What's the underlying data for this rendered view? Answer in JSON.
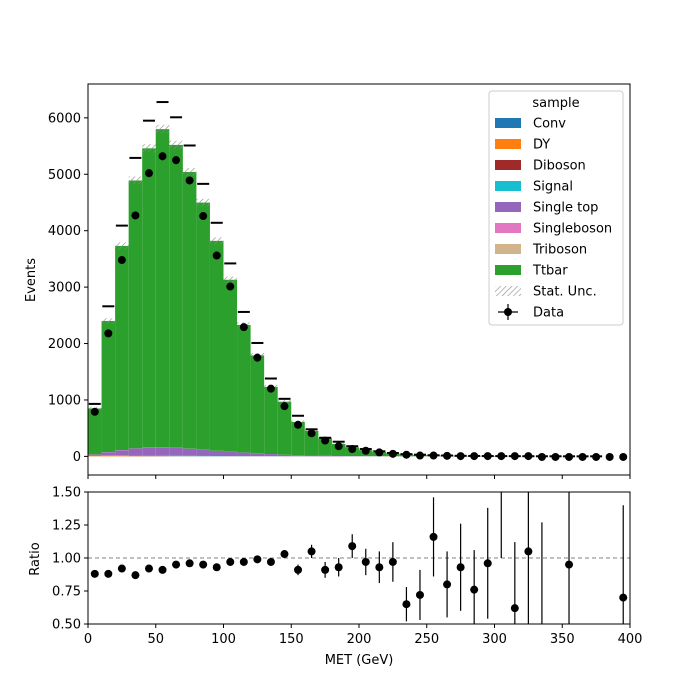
{
  "chart_data": [
    {
      "type": "bar",
      "panel": "main",
      "stacked": true,
      "ylabel": "Events",
      "xlim": [
        0,
        400
      ],
      "ylim": [
        -330,
        6600
      ],
      "bin_width": 10,
      "x_bin_centers": [
        5,
        15,
        25,
        35,
        45,
        55,
        65,
        75,
        85,
        95,
        105,
        115,
        125,
        135,
        145,
        155,
        165,
        175,
        185,
        195,
        205,
        215,
        225,
        235,
        245,
        255,
        265,
        275,
        285,
        295,
        305,
        315,
        325,
        335,
        345,
        355,
        365,
        375,
        385,
        395
      ],
      "yticks": [
        0,
        1000,
        2000,
        3000,
        4000,
        5000,
        6000
      ],
      "legend": {
        "title": "sample",
        "position": "top-right",
        "entries": [
          "Conv",
          "DY",
          "Diboson",
          "Signal",
          "Single top",
          "Singleboson",
          "Triboson",
          "Ttbar",
          "Stat. Unc.",
          "Data"
        ]
      },
      "series": [
        {
          "name": "Conv",
          "color": "#1f77b4",
          "values": [
            0,
            0,
            0,
            0,
            0,
            0,
            0,
            0,
            0,
            0,
            0,
            0,
            0,
            0,
            0,
            0,
            0,
            0,
            0,
            0,
            0,
            0,
            0,
            0,
            0,
            0,
            0,
            0,
            0,
            0,
            0,
            0,
            0,
            0,
            0,
            0,
            0,
            0,
            0,
            0
          ]
        },
        {
          "name": "DY",
          "color": "#ff7f0e",
          "values": [
            5,
            10,
            6,
            3,
            2,
            1,
            1,
            1,
            0,
            0,
            0,
            0,
            0,
            0,
            0,
            0,
            0,
            0,
            0,
            0,
            0,
            0,
            0,
            0,
            0,
            0,
            0,
            0,
            0,
            0,
            0,
            0,
            0,
            0,
            0,
            0,
            0,
            0,
            0,
            0
          ]
        },
        {
          "name": "Diboson",
          "color": "#a02a2a",
          "values": [
            2,
            3,
            4,
            4,
            4,
            4,
            3,
            3,
            3,
            2,
            2,
            2,
            1,
            1,
            1,
            1,
            0,
            0,
            0,
            0,
            0,
            0,
            0,
            0,
            0,
            0,
            0,
            0,
            0,
            0,
            0,
            0,
            0,
            0,
            0,
            0,
            0,
            0,
            0,
            0
          ]
        },
        {
          "name": "Signal",
          "color": "#17becf",
          "values": [
            3,
            5,
            8,
            8,
            8,
            8,
            7,
            6,
            5,
            4,
            3,
            3,
            2,
            2,
            1,
            1,
            1,
            0,
            0,
            0,
            0,
            0,
            0,
            0,
            0,
            0,
            0,
            0,
            0,
            0,
            0,
            0,
            0,
            0,
            0,
            0,
            0,
            0,
            0,
            0
          ]
        },
        {
          "name": "Single top",
          "color": "#9467bd",
          "values": [
            25,
            55,
            90,
            125,
            145,
            150,
            140,
            125,
            108,
            92,
            76,
            62,
            50,
            38,
            28,
            20,
            14,
            10,
            7,
            5,
            4,
            3,
            2,
            1,
            1,
            1,
            0,
            0,
            0,
            0,
            0,
            0,
            0,
            0,
            0,
            0,
            0,
            0,
            0,
            0
          ]
        },
        {
          "name": "Singleboson",
          "color": "#e377c2",
          "values": [
            1,
            2,
            3,
            3,
            3,
            3,
            2,
            2,
            2,
            1,
            1,
            1,
            1,
            0,
            0,
            0,
            0,
            0,
            0,
            0,
            0,
            0,
            0,
            0,
            0,
            0,
            0,
            0,
            0,
            0,
            0,
            0,
            0,
            0,
            0,
            0,
            0,
            0,
            0,
            0
          ]
        },
        {
          "name": "Triboson",
          "color": "#d2b48c",
          "values": [
            0,
            0,
            0,
            0,
            0,
            0,
            0,
            0,
            0,
            0,
            0,
            0,
            0,
            0,
            0,
            0,
            0,
            0,
            0,
            0,
            0,
            0,
            0,
            0,
            0,
            0,
            0,
            0,
            0,
            0,
            0,
            0,
            0,
            0,
            0,
            0,
            0,
            0,
            0,
            0
          ]
        },
        {
          "name": "Ttbar",
          "color": "#2ca02c",
          "values": [
            814,
            2325,
            3619,
            4747,
            5298,
            5634,
            5367,
            4903,
            4380,
            3721,
            3048,
            2262,
            1736,
            1189,
            939,
            588,
            435,
            310,
            213,
            155,
            106,
            72,
            48,
            34,
            24,
            19,
            14,
            10,
            7,
            5,
            4,
            3,
            2,
            1,
            1,
            1,
            1,
            0,
            0,
            0
          ]
        }
      ],
      "stat_unc_color": "#888888",
      "ghost_marker_values": [
        930,
        2660,
        4090,
        5290,
        5950,
        6280,
        6010,
        5510,
        4830,
        4140,
        3420,
        2560,
        2010,
        1380,
        1020,
        720,
        480,
        330,
        260,
        180,
        130,
        90,
        60,
        40,
        30,
        20,
        15,
        10,
        8,
        6,
        5,
        4,
        3,
        2,
        2,
        1,
        1,
        1,
        0,
        0
      ],
      "data": {
        "name": "Data",
        "values": [
          790,
          2180,
          3480,
          4270,
          5020,
          5320,
          5250,
          4890,
          4260,
          3560,
          3010,
          2290,
          1750,
          1200,
          890,
          560,
          410,
          280,
          180,
          130,
          100,
          70,
          45,
          30,
          15,
          15,
          10,
          5,
          5,
          5,
          5,
          5,
          5,
          -10,
          -10,
          -10,
          -10,
          -10,
          -10,
          -10
        ]
      }
    },
    {
      "type": "scatter",
      "panel": "ratio",
      "xlabel": "MET (GeV)",
      "ylabel": "Ratio",
      "xlim": [
        0,
        400
      ],
      "ylim": [
        0.5,
        1.5
      ],
      "xticks": [
        0,
        50,
        100,
        150,
        200,
        250,
        300,
        350,
        400
      ],
      "yticks": [
        0.5,
        0.75,
        1.0,
        1.25,
        1.5
      ],
      "ytick_labels": [
        "0.50",
        "0.75",
        "1.00",
        "1.25",
        "1.50"
      ],
      "reference_line": 1.0,
      "points": [
        {
          "x": 5,
          "y": 0.88,
          "err": 0.02
        },
        {
          "x": 15,
          "y": 0.88,
          "err": 0.01
        },
        {
          "x": 25,
          "y": 0.92,
          "err": 0.01
        },
        {
          "x": 35,
          "y": 0.87,
          "err": 0.01
        },
        {
          "x": 45,
          "y": 0.92,
          "err": 0.01
        },
        {
          "x": 55,
          "y": 0.91,
          "err": 0.01
        },
        {
          "x": 65,
          "y": 0.95,
          "err": 0.01
        },
        {
          "x": 75,
          "y": 0.96,
          "err": 0.01
        },
        {
          "x": 85,
          "y": 0.95,
          "err": 0.01
        },
        {
          "x": 95,
          "y": 0.93,
          "err": 0.01
        },
        {
          "x": 105,
          "y": 0.97,
          "err": 0.01
        },
        {
          "x": 115,
          "y": 0.97,
          "err": 0.01
        },
        {
          "x": 125,
          "y": 0.99,
          "err": 0.01
        },
        {
          "x": 135,
          "y": 0.97,
          "err": 0.01
        },
        {
          "x": 145,
          "y": 1.03,
          "err": 0.03
        },
        {
          "x": 155,
          "y": 0.91,
          "err": 0.04
        },
        {
          "x": 165,
          "y": 1.05,
          "err": 0.05
        },
        {
          "x": 175,
          "y": 0.91,
          "err": 0.06
        },
        {
          "x": 185,
          "y": 0.93,
          "err": 0.07
        },
        {
          "x": 195,
          "y": 1.09,
          "err": 0.09
        },
        {
          "x": 205,
          "y": 0.97,
          "err": 0.1
        },
        {
          "x": 215,
          "y": 0.93,
          "err": 0.12
        },
        {
          "x": 225,
          "y": 0.97,
          "err": 0.15
        },
        {
          "x": 235,
          "y": 0.65,
          "err": 0.13
        },
        {
          "x": 245,
          "y": 0.72,
          "err": 0.19
        },
        {
          "x": 255,
          "y": 1.16,
          "err": 0.3
        },
        {
          "x": 265,
          "y": 0.8,
          "err": 0.25
        },
        {
          "x": 275,
          "y": 0.93,
          "err": 0.33
        },
        {
          "x": 285,
          "y": 0.76,
          "err": 0.3
        },
        {
          "x": 295,
          "y": 0.96,
          "err": 0.42
        },
        {
          "x": 305,
          "y": null,
          "err": null,
          "err_low": 1.0,
          "err_high": 1.6
        },
        {
          "x": 315,
          "y": 0.62,
          "err": 0.5
        },
        {
          "x": 325,
          "y": 1.05,
          "err": 0.55
        },
        {
          "x": 335,
          "y": null,
          "err": null,
          "err_low": 0.4,
          "err_high": 1.27
        },
        {
          "x": 355,
          "y": 0.95,
          "err": 0.6
        },
        {
          "x": 395,
          "y": 0.7,
          "err": 0.7
        }
      ]
    }
  ]
}
